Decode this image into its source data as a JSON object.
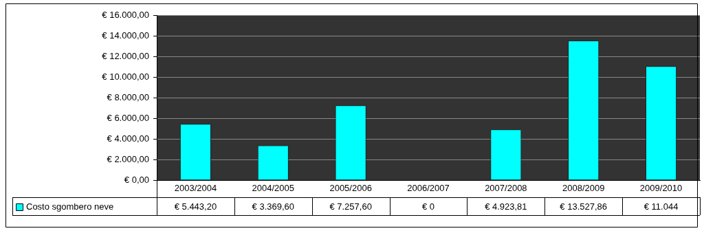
{
  "chart_data": {
    "type": "bar",
    "categories": [
      "2003/2004",
      "2004/2005",
      "2005/2006",
      "2006/2007",
      "2007/2008",
      "2008/2009",
      "2009/2010"
    ],
    "series": [
      {
        "name": "Costo sgombero neve",
        "color": "#00ffff",
        "values": [
          5443.2,
          3369.6,
          7257.6,
          0,
          4923.81,
          13527.86,
          11044
        ],
        "value_labels": [
          "€ 5.443,20",
          "€ 3.369,60",
          "€ 7.257,60",
          "€ 0",
          "€ 4.923,81",
          "€ 13.527,86",
          "€ 11.044"
        ]
      }
    ],
    "ylim": [
      0,
      16000
    ],
    "yticks": [
      {
        "value": 0,
        "label": "€ 0,00"
      },
      {
        "value": 2000,
        "label": "€ 2.000,00"
      },
      {
        "value": 4000,
        "label": "€ 4.000,00"
      },
      {
        "value": 6000,
        "label": "€ 6.000,00"
      },
      {
        "value": 8000,
        "label": "€ 8.000,00"
      },
      {
        "value": 10000,
        "label": "€ 10.000,00"
      },
      {
        "value": 12000,
        "label": "€ 12.000,00"
      },
      {
        "value": 14000,
        "label": "€ 14.000,00"
      },
      {
        "value": 16000,
        "label": "€ 16.000,00"
      }
    ],
    "grid": "y",
    "legend": "bottom"
  }
}
